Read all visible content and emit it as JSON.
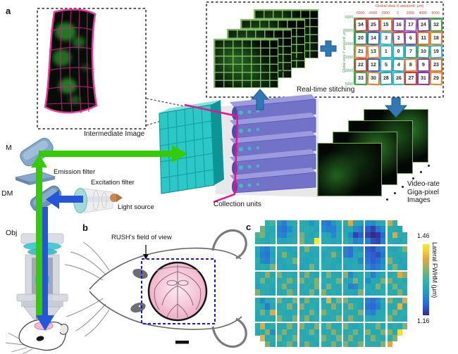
{
  "figure": {
    "panel_a_label": "a",
    "panel_b_label": "b",
    "panel_c_label": "c"
  },
  "panel_a": {
    "intermediate_image_label": "Intermediate Image",
    "stitching_label": "Real-time stitching",
    "collection_units_label": "Collection units",
    "video_label_lines": [
      "Video-rate",
      "Giga-pixel",
      "Images"
    ],
    "optics": {
      "mirror": "M",
      "dichroic": "DM",
      "objective": "Obj",
      "emission_filter": "Emission filter",
      "excitation_filter": "Excitation filter",
      "light_source": "Light source"
    },
    "stitch_map": {
      "x_axis_title": "Global view X axis(unit: µm)",
      "y_axis_title": "Global view Y axis(unit: µm)",
      "x_ticks": [
        "-6000",
        "-4000",
        "-2000",
        "0",
        "2000",
        "4000",
        "6000"
      ],
      "y_ticks": [
        "-5000",
        "-3000",
        "-1000",
        "1000",
        "3000",
        "5000"
      ],
      "numbers": [
        [
          34,
          25,
          15,
          16,
          17,
          24,
          32
        ],
        [
          20,
          14,
          3,
          2,
          6,
          11,
          18
        ],
        [
          21,
          13,
          1,
          0,
          7,
          10,
          19
        ],
        [
          22,
          12,
          5,
          4,
          8,
          9,
          23
        ],
        [
          33,
          30,
          28,
          26,
          27,
          31,
          29
        ]
      ],
      "border_colors": [
        [
          "#c0392b",
          "#c23b52",
          "#e2762e",
          "#8e44ad",
          "#9b59b6",
          "#7d3c98",
          "#3f9e4d"
        ],
        [
          "#2f9e6e",
          "#2e6bc4",
          "#2fb5c9",
          "#cc3b33",
          "#8e44ad",
          "#e2762e",
          "#e08030"
        ],
        [
          "#e2762e",
          "#e08030",
          "#2fb5c9",
          "#36b8c8",
          "#2a9d9d",
          "#3f9e4d",
          "#36a8d8"
        ],
        [
          "#cc3b33",
          "#2e6bc4",
          "#2fb5c9",
          "#2a9d9d",
          "#e2762e",
          "#8e44ad",
          "#e2762e"
        ],
        [
          "#3f9e4d",
          "#e2762e",
          "#2a9d9d",
          "#36b8c8",
          "#cc3b33",
          "#7d3c98",
          "#e08030"
        ]
      ]
    }
  },
  "panel_b": {
    "fov_label": "RUSH's field of view"
  },
  "panel_c": {
    "colorbar_max": "1.46",
    "colorbar_min": "1.16",
    "colorbar_label": "Lateral FWHM (µm)"
  },
  "chart_data": {
    "type": "heatmap",
    "title": "Lateral FWHM (µm)",
    "vmin": 1.16,
    "vmax": 1.46,
    "grid": {
      "rows": 20,
      "cols": 28,
      "block_rows": 5,
      "block_cols": 7,
      "cells_per_block": 4
    },
    "encoding": "each cell = 2 decimal digits = (FWHM - 1.16) * 100; '..' = outside circular field of view",
    "rows": [
      "....141609071213131209120706091213241211090812132214....",
      "..18131207060812121312110807071111120807040206081312 11..",
      "16191213080711121812111312110812120802040200010512241312",
      "14131214121112131912133012121112131107080703020713121113",
      "12080712131211121219121213121211070610090403060712111319",
      "11070611121912111312111211121912070611120504030613121213",
      "13080712111213191211121312131211121112080604050819121112",
      "12131219121112121112191213121113111213120806070913191211",
      "13121912191213121219121112191212190812131207111212132419",
      "12191213121319131912131913121319121119120812121919121312",
      "11121312131912121213121912191212130708121211191212191213",
      "19131211121219131312191219121312121211191112121313121912",
      "12081213191212191219121312251219191212120706081219131224",
      "13120712121319121912131213121912121913110605071112122512",
      "12191224131212131212191219131213131212190807121213191213",
      "11121312191312191319121312121319121913121211121319121312",
      "13241213121219121912121913191212191211131212191212131219",
      "12131908131912131213191212121913121319121912121919 1229..",
      "..2512131912131913121213191312191319121312191312 1319....",
      "....19121213191212191312131219121912131913121219 24......"
    ],
    "colormap_t": [
      0,
      0.15,
      0.33,
      0.5,
      0.65,
      0.8,
      0.9,
      1
    ],
    "colormap_colors": [
      "#352a87",
      "#2e63d8",
      "#1f9fc0",
      "#35b49e",
      "#8cb06e",
      "#e0a83f",
      "#f0cc38",
      "#f9e92e"
    ],
    "legend_position": "right"
  }
}
